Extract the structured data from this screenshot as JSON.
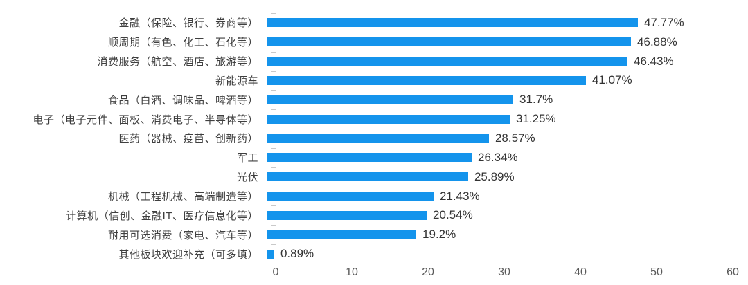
{
  "chart_data": {
    "type": "bar",
    "orientation": "horizontal",
    "title": "",
    "xlabel": "",
    "ylabel": "",
    "categories": [
      "金融（保险、银行、券商等）",
      "顺周期（有色、化工、石化等）",
      "消费服务（航空、酒店、旅游等）",
      "新能源车",
      "食品（白酒、调味品、啤酒等）",
      "电子（电子元件、面板、消费电子、半导体等）",
      "医药（器械、疫苗、创新药）",
      "军工",
      "光伏",
      "机械（工程机械、高端制造等）",
      "计算机（信创、金融IT、医疗信息化等）",
      "耐用可选消费（家电、汽车等）",
      "其他板块欢迎补充（可多填）"
    ],
    "values": [
      47.77,
      46.88,
      46.43,
      41.07,
      31.7,
      31.25,
      28.57,
      26.34,
      25.89,
      21.43,
      20.54,
      19.2,
      0.89
    ],
    "data_labels": [
      "47.77%",
      "46.88%",
      "46.43%",
      "41.07%",
      "31.7%",
      "31.25%",
      "28.57%",
      "26.34%",
      "25.89%",
      "21.43%",
      "20.54%",
      "19.2%",
      "0.89%"
    ],
    "x_ticks": [
      "0",
      "10",
      "20",
      "30",
      "40",
      "50",
      "60"
    ],
    "xlim": [
      0,
      60
    ],
    "grid": false,
    "legend_position": "none",
    "bar_color": "#1494ec",
    "axis_color": "#d6d6d6",
    "label_color": "#3f3f3f",
    "value_label_color": "#333333",
    "tick_label_color": "#595959"
  }
}
